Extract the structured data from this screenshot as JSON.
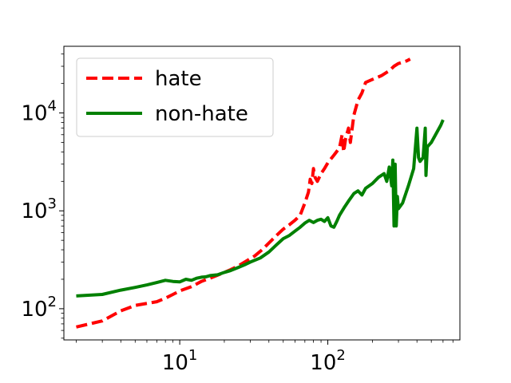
{
  "chart_data": {
    "type": "line",
    "xscale": "log",
    "yscale": "log",
    "xlim": [
      1.65,
      780
    ],
    "ylim": [
      48,
      48000
    ],
    "grid": false,
    "legend_position": "top-left",
    "x_ticks": [
      {
        "value": 10,
        "base": "10",
        "exp": "1"
      },
      {
        "value": 100,
        "base": "10",
        "exp": "2"
      }
    ],
    "y_ticks": [
      {
        "value": 100,
        "base": "10",
        "exp": "2"
      },
      {
        "value": 1000,
        "base": "10",
        "exp": "3"
      },
      {
        "value": 10000,
        "base": "10",
        "exp": "4"
      }
    ],
    "series": [
      {
        "name": "hate",
        "color": "#ff0000",
        "style": "dashed",
        "points": [
          [
            2,
            65
          ],
          [
            3,
            75
          ],
          [
            4,
            95
          ],
          [
            5,
            108
          ],
          [
            7,
            118
          ],
          [
            8,
            128
          ],
          [
            9,
            140
          ],
          [
            10,
            152
          ],
          [
            12,
            168
          ],
          [
            14,
            190
          ],
          [
            16,
            205
          ],
          [
            18,
            220
          ],
          [
            20,
            235
          ],
          [
            22,
            250
          ],
          [
            25,
            275
          ],
          [
            28,
            305
          ],
          [
            32,
            345
          ],
          [
            36,
            400
          ],
          [
            40,
            470
          ],
          [
            45,
            560
          ],
          [
            50,
            650
          ],
          [
            55,
            720
          ],
          [
            60,
            800
          ],
          [
            65,
            900
          ],
          [
            70,
            1200
          ],
          [
            74,
            1550
          ],
          [
            76,
            2100
          ],
          [
            78,
            1900
          ],
          [
            80,
            2700
          ],
          [
            82,
            2200
          ],
          [
            85,
            2000
          ],
          [
            90,
            2400
          ],
          [
            95,
            2700
          ],
          [
            100,
            3100
          ],
          [
            110,
            3700
          ],
          [
            120,
            4400
          ],
          [
            125,
            6000
          ],
          [
            128,
            4000
          ],
          [
            132,
            5500
          ],
          [
            138,
            7000
          ],
          [
            142,
            5000
          ],
          [
            150,
            9500
          ],
          [
            160,
            13500
          ],
          [
            170,
            16000
          ],
          [
            180,
            20500
          ],
          [
            200,
            22000
          ],
          [
            230,
            24000
          ],
          [
            260,
            27000
          ],
          [
            280,
            30000
          ],
          [
            300,
            32000
          ],
          [
            320,
            33000
          ],
          [
            340,
            34000
          ],
          [
            360,
            35500
          ]
        ]
      },
      {
        "name": "non-hate",
        "color": "#008000",
        "style": "solid",
        "points": [
          [
            2,
            135
          ],
          [
            3,
            140
          ],
          [
            4,
            155
          ],
          [
            5,
            165
          ],
          [
            6,
            175
          ],
          [
            7,
            185
          ],
          [
            8,
            195
          ],
          [
            9,
            190
          ],
          [
            10,
            188
          ],
          [
            11,
            200
          ],
          [
            12,
            195
          ],
          [
            13,
            205
          ],
          [
            14,
            210
          ],
          [
            15,
            212
          ],
          [
            16,
            218
          ],
          [
            18,
            222
          ],
          [
            20,
            235
          ],
          [
            22,
            245
          ],
          [
            25,
            265
          ],
          [
            28,
            285
          ],
          [
            30,
            300
          ],
          [
            35,
            330
          ],
          [
            40,
            380
          ],
          [
            45,
            450
          ],
          [
            50,
            520
          ],
          [
            55,
            560
          ],
          [
            60,
            620
          ],
          [
            65,
            680
          ],
          [
            70,
            750
          ],
          [
            75,
            800
          ],
          [
            80,
            760
          ],
          [
            85,
            800
          ],
          [
            90,
            820
          ],
          [
            95,
            780
          ],
          [
            100,
            850
          ],
          [
            105,
            700
          ],
          [
            110,
            680
          ],
          [
            115,
            780
          ],
          [
            120,
            900
          ],
          [
            130,
            1100
          ],
          [
            140,
            1300
          ],
          [
            150,
            1500
          ],
          [
            160,
            1600
          ],
          [
            170,
            1450
          ],
          [
            180,
            1700
          ],
          [
            200,
            1900
          ],
          [
            220,
            2200
          ],
          [
            240,
            2400
          ],
          [
            250,
            2000
          ],
          [
            260,
            2800
          ],
          [
            270,
            1800
          ],
          [
            275,
            3300
          ],
          [
            280,
            700
          ],
          [
            285,
            3000
          ],
          [
            290,
            700
          ],
          [
            295,
            1400
          ],
          [
            300,
            1050
          ],
          [
            320,
            1200
          ],
          [
            350,
            1800
          ],
          [
            380,
            2700
          ],
          [
            400,
            7000
          ],
          [
            410,
            3500
          ],
          [
            420,
            3200
          ],
          [
            440,
            3500
          ],
          [
            455,
            7000
          ],
          [
            460,
            2300
          ],
          [
            470,
            4500
          ],
          [
            500,
            5000
          ],
          [
            550,
            6500
          ],
          [
            580,
            7500
          ],
          [
            600,
            8500
          ]
        ]
      }
    ]
  }
}
